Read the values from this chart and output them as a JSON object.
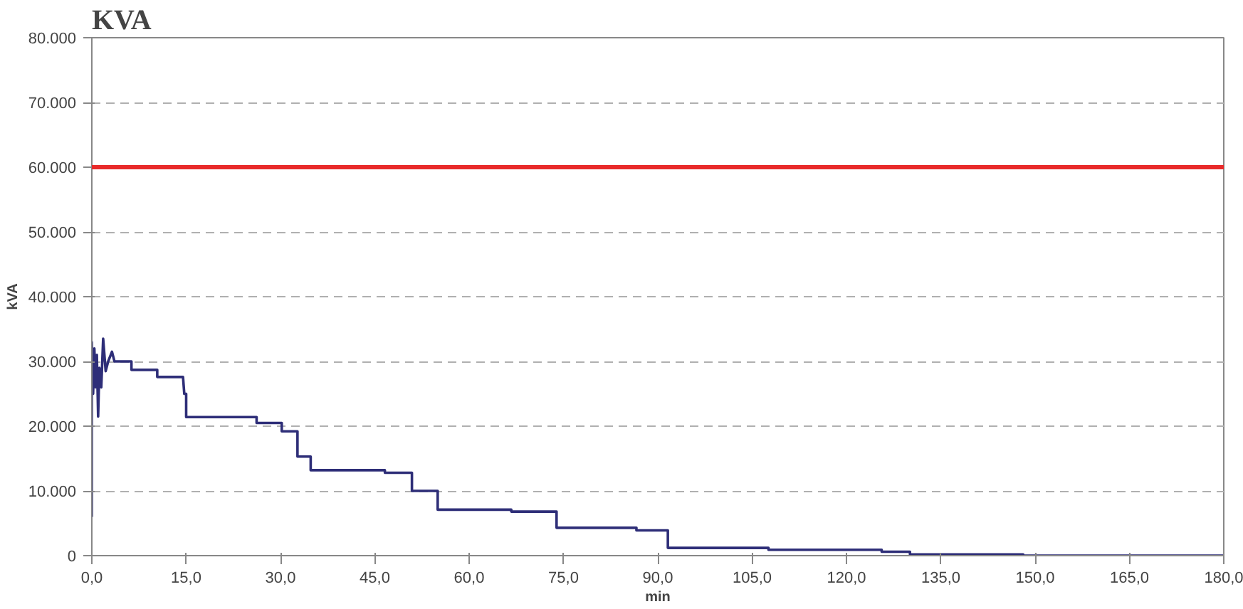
{
  "chart_data": {
    "type": "line",
    "title": "KVA",
    "xlabel": "min",
    "ylabel": "kVA",
    "series": [
      {
        "color": "#2e2e78",
        "x": [
          0,
          0,
          0.2,
          0.4,
          0.6,
          0.8,
          1.0,
          1.2,
          1.5,
          1.8,
          2.2,
          2.6,
          3.2,
          3.6,
          6.3,
          6.3,
          10.4,
          10.4,
          14.5,
          14.7,
          15.0,
          15.0,
          26.2,
          26.2,
          30.2,
          30.2,
          32.7,
          32.7,
          34.8,
          34.8,
          46.6,
          46.6,
          50.9,
          50.9,
          55.0,
          55.0,
          66.7,
          66.7,
          73.9,
          73.9,
          86.6,
          86.6,
          91.6,
          91.6,
          107.6,
          107.6,
          125.6,
          125.6,
          130.1,
          130.1,
          148.1,
          148.1,
          180
        ],
        "values": [
          6000,
          33000,
          25000,
          32000,
          26000,
          31000,
          21500,
          29000,
          26000,
          33500,
          28500,
          30000,
          31500,
          30000,
          30000,
          28700,
          28700,
          27600,
          27600,
          25000,
          25000,
          21400,
          21400,
          20500,
          20500,
          19200,
          19200,
          15300,
          15300,
          13200,
          13200,
          12800,
          12800,
          10000,
          10000,
          7100,
          7100,
          6800,
          6800,
          4300,
          4300,
          3900,
          3900,
          1200,
          1200,
          900,
          900,
          600,
          600,
          200,
          200,
          0,
          0
        ]
      }
    ],
    "xlim": [
      0,
      180
    ],
    "ylim": [
      0,
      80000
    ],
    "xticks": [
      {
        "value": 0,
        "label": "0,0"
      },
      {
        "value": 15,
        "label": "15,0"
      },
      {
        "value": 30,
        "label": "30,0"
      },
      {
        "value": 45,
        "label": "45,0"
      },
      {
        "value": 60,
        "label": "60,0"
      },
      {
        "value": 75,
        "label": "75,0"
      },
      {
        "value": 90,
        "label": "90,0"
      },
      {
        "value": 105,
        "label": "105,0"
      },
      {
        "value": 120,
        "label": "120,0"
      },
      {
        "value": 135,
        "label": "135,0"
      },
      {
        "value": 150,
        "label": "150,0"
      },
      {
        "value": 165,
        "label": "165,0"
      },
      {
        "value": 180,
        "label": "180,0"
      }
    ],
    "yticks": [
      0,
      {
        "value": 10000,
        "label": "10.000"
      },
      {
        "value": 20000,
        "label": "20.000"
      },
      {
        "value": 30000,
        "label": "30.000"
      },
      {
        "value": 40000,
        "label": "40.000"
      },
      {
        "value": 50000,
        "label": "50.000"
      },
      {
        "value": 60000,
        "label": "60.000"
      },
      {
        "value": 70000,
        "label": "70.000"
      },
      {
        "value": 80000,
        "label": "80.000"
      }
    ],
    "grid": "y",
    "line_style": "solid",
    "ref_lines": [
      {
        "axis": "y",
        "value": 60000,
        "color": "#e82a2a",
        "line_style": "solid"
      }
    ]
  }
}
